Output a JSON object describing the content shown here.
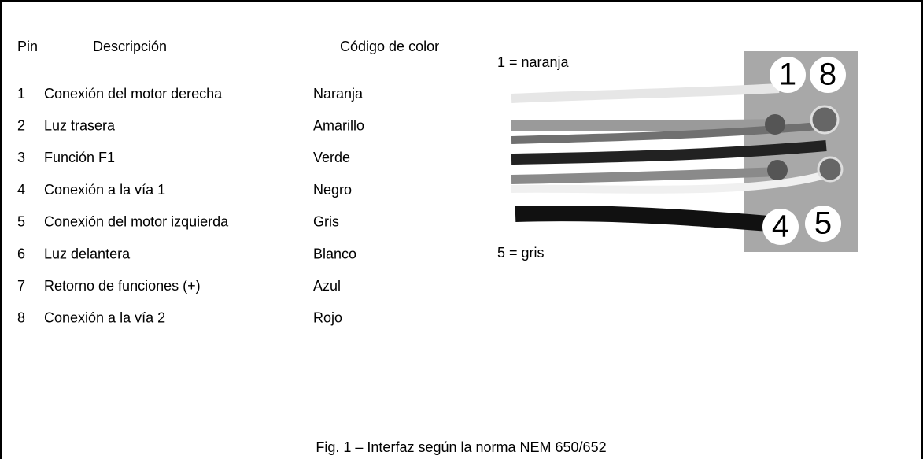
{
  "table": {
    "header": [
      "Pin",
      "Descripción",
      "Código de color"
    ],
    "rows": [
      [
        "1",
        "Conexión del motor derecha",
        "Naranja"
      ],
      [
        "2",
        "Luz trasera",
        "Amarillo"
      ],
      [
        "3",
        "Función F1",
        "Verde"
      ],
      [
        "4",
        "Conexión a la vía 1",
        "Negro"
      ],
      [
        "5",
        "Conexión del motor izquierda",
        "Gris"
      ],
      [
        "6",
        "Luz delantera",
        "Blanco"
      ],
      [
        "7",
        "Retorno de funciones (+)",
        "Azul"
      ],
      [
        "8",
        "Conexión a la vía 2",
        "Rojo"
      ]
    ]
  },
  "photo": {
    "top_label": "1 = naranja",
    "bottom_label": "5 = gris",
    "pins": [
      "1",
      "8",
      "4",
      "5"
    ]
  },
  "caption": "Fig. 1 – Interfaz según la norma NEM 650/652"
}
